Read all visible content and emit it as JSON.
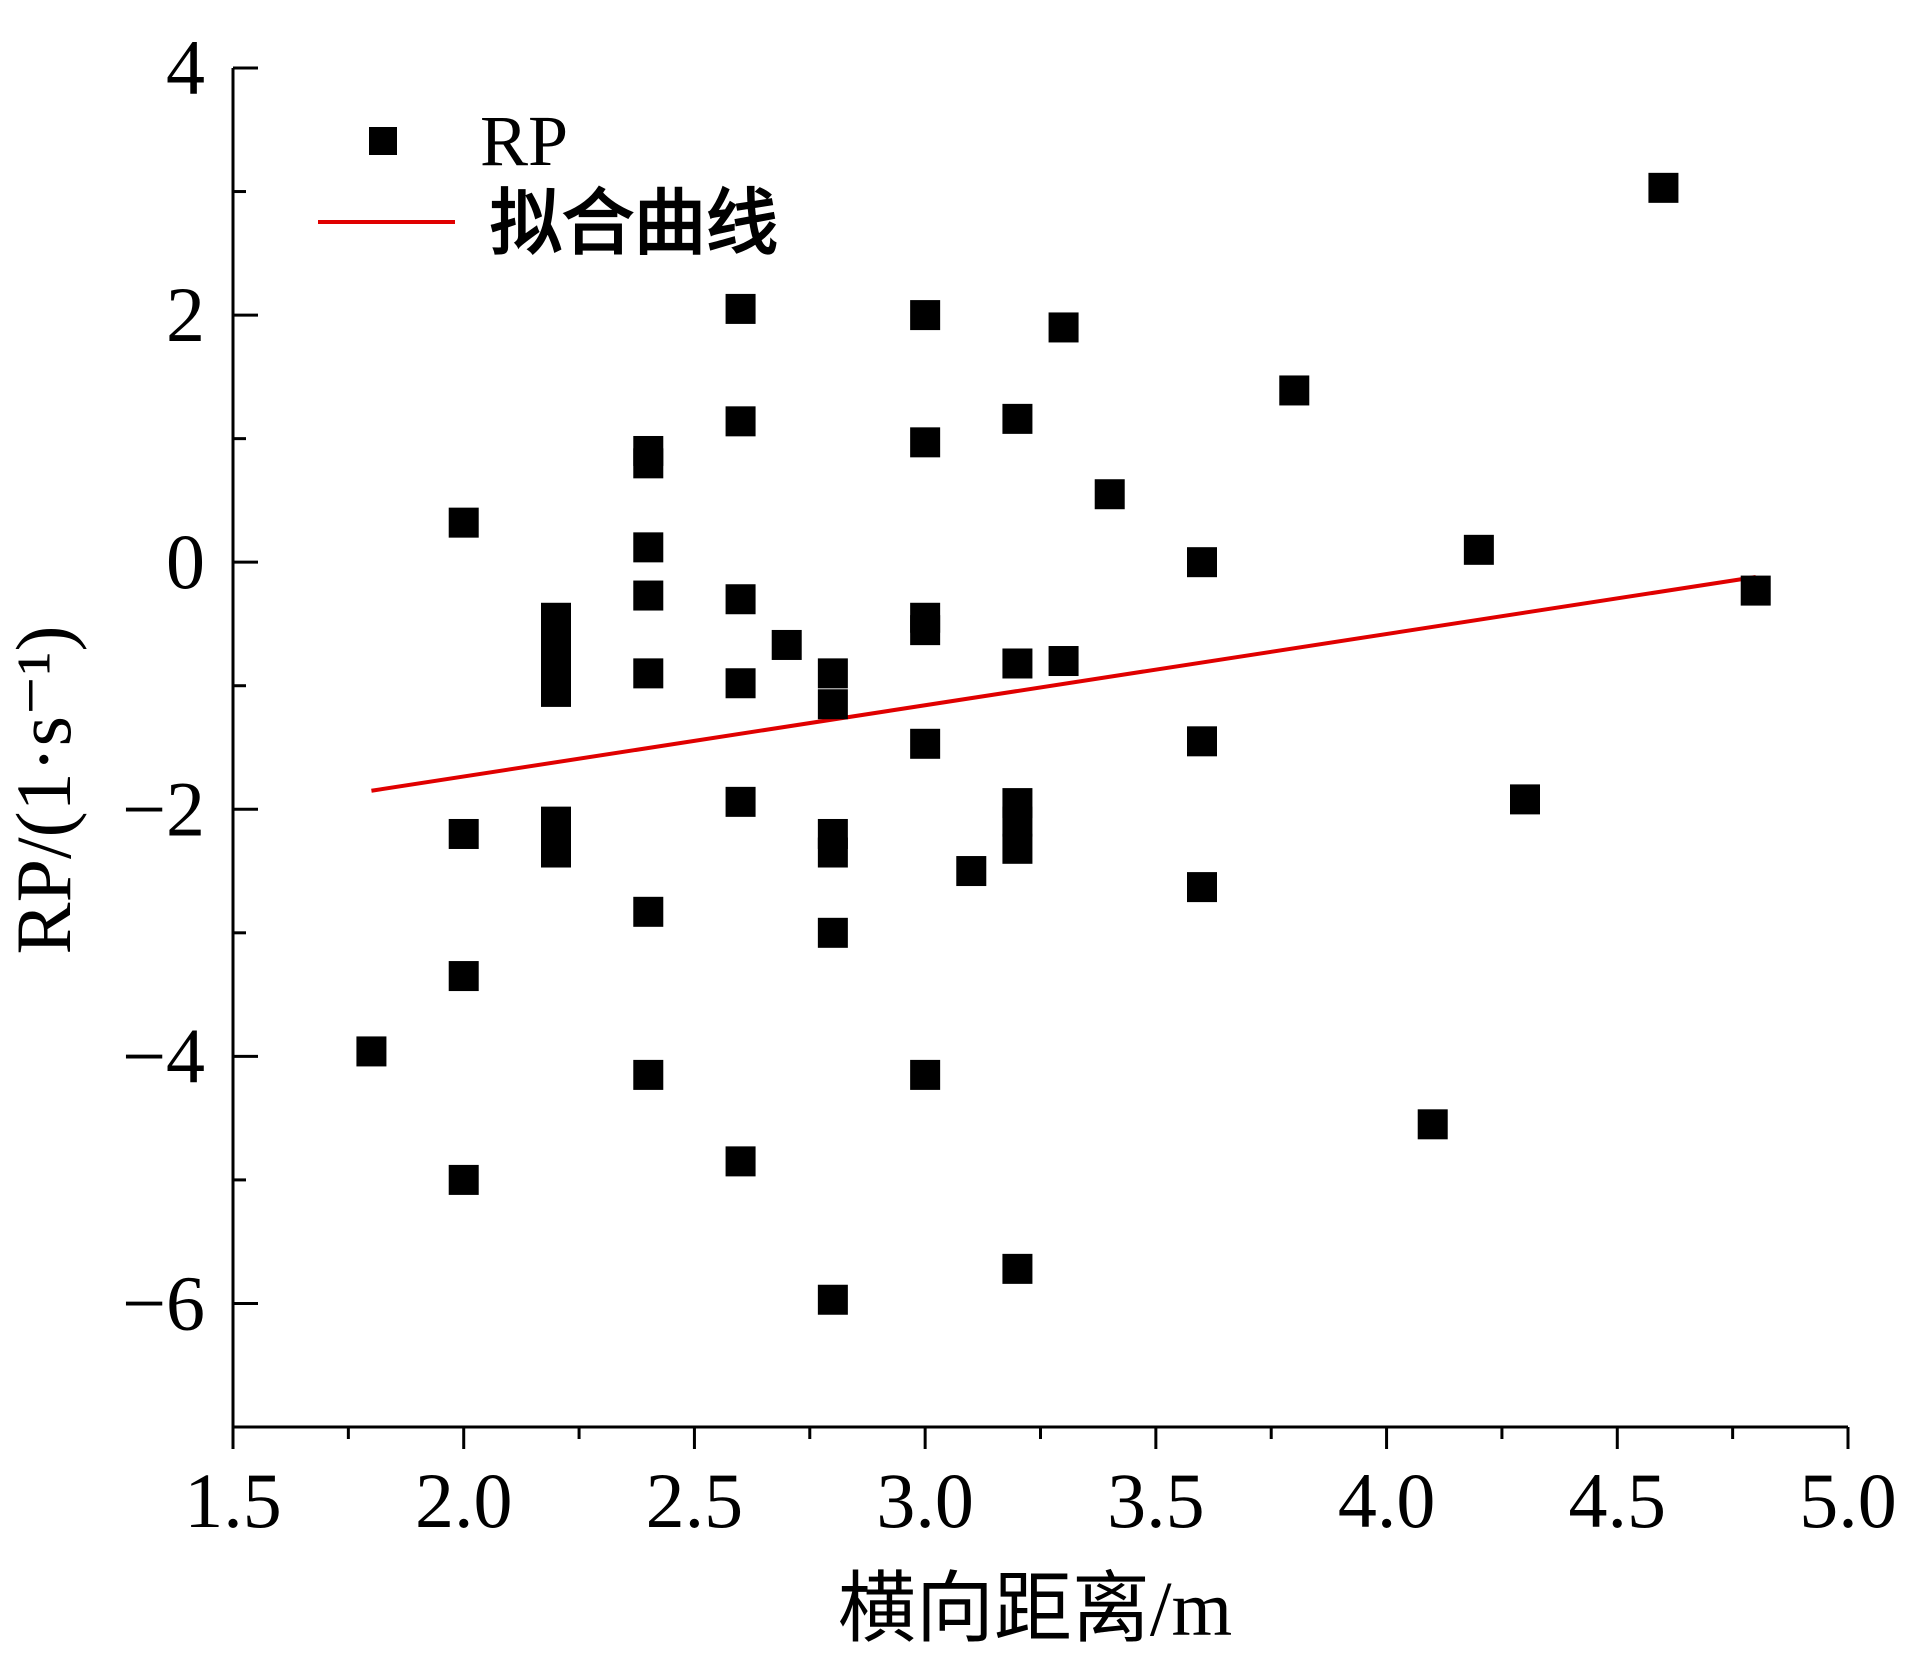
{
  "chart_data": {
    "type": "scatter",
    "xlabel": "横向距离/m",
    "ylabel": "RP/(1·s⁻¹)",
    "xlim": [
      1.5,
      5.0
    ],
    "ylim": [
      -7,
      4
    ],
    "x_ticks": [
      {
        "value": 1.5,
        "label": "1.5"
      },
      {
        "value": 2.0,
        "label": "2.0"
      },
      {
        "value": 2.5,
        "label": "2.5"
      },
      {
        "value": 3.0,
        "label": "3.0"
      },
      {
        "value": 3.5,
        "label": "3.5"
      },
      {
        "value": 4.0,
        "label": "4.0"
      },
      {
        "value": 4.5,
        "label": "4.5"
      },
      {
        "value": 5.0,
        "label": "5.0"
      }
    ],
    "x_minor_ticks": [
      1.75,
      2.25,
      2.75,
      3.25,
      3.75,
      4.25,
      4.75
    ],
    "y_ticks": [
      {
        "value": 4,
        "label": "4"
      },
      {
        "value": 2,
        "label": "2"
      },
      {
        "value": 0,
        "label": "0"
      },
      {
        "value": -2,
        "label": "−2"
      },
      {
        "value": -4,
        "label": "−4"
      },
      {
        "value": -6,
        "label": "−6"
      }
    ],
    "y_minor_ticks": [
      3,
      1,
      -1,
      -3,
      -5,
      -7
    ],
    "legend": {
      "position": "top-left",
      "entries": [
        {
          "label": "RP",
          "marker": "square"
        },
        {
          "label": "拟合曲线",
          "marker": "line"
        }
      ]
    },
    "series": [
      {
        "name": "RP",
        "kind": "scatter",
        "color": "#000000",
        "points": [
          [
            1.8,
            -3.96
          ],
          [
            2.0,
            0.32
          ],
          [
            2.0,
            -2.2
          ],
          [
            2.0,
            -3.35
          ],
          [
            2.0,
            -5.0
          ],
          [
            2.2,
            -0.45
          ],
          [
            2.2,
            -0.6
          ],
          [
            2.2,
            -0.75
          ],
          [
            2.2,
            -0.9
          ],
          [
            2.2,
            -1.05
          ],
          [
            2.2,
            -2.1
          ],
          [
            2.2,
            -2.25
          ],
          [
            2.2,
            -2.35
          ],
          [
            2.4,
            0.9
          ],
          [
            2.4,
            0.8
          ],
          [
            2.4,
            0.12
          ],
          [
            2.4,
            -0.27
          ],
          [
            2.4,
            -0.9
          ],
          [
            2.4,
            -2.83
          ],
          [
            2.4,
            -4.15
          ],
          [
            2.6,
            2.05
          ],
          [
            2.6,
            1.14
          ],
          [
            2.6,
            -0.3
          ],
          [
            2.6,
            -0.98
          ],
          [
            2.6,
            -1.94
          ],
          [
            2.6,
            -4.85
          ],
          [
            2.7,
            -0.67
          ],
          [
            2.8,
            -0.9
          ],
          [
            2.8,
            -1.15
          ],
          [
            2.8,
            -2.2
          ],
          [
            2.8,
            -2.35
          ],
          [
            2.8,
            -3.0
          ],
          [
            2.8,
            -5.97
          ],
          [
            3.0,
            2.0
          ],
          [
            3.0,
            0.97
          ],
          [
            3.0,
            -0.45
          ],
          [
            3.0,
            -0.55
          ],
          [
            3.0,
            -1.47
          ],
          [
            3.0,
            -4.15
          ],
          [
            3.1,
            -2.5
          ],
          [
            3.2,
            1.16
          ],
          [
            3.2,
            -0.82
          ],
          [
            3.2,
            -1.95
          ],
          [
            3.2,
            -2.1
          ],
          [
            3.2,
            -2.32
          ],
          [
            3.2,
            -5.72
          ],
          [
            3.3,
            1.9
          ],
          [
            3.3,
            -0.8
          ],
          [
            3.4,
            0.55
          ],
          [
            3.6,
            0.0
          ],
          [
            3.6,
            -1.45
          ],
          [
            3.6,
            -2.63
          ],
          [
            3.8,
            1.39
          ],
          [
            4.1,
            -4.55
          ],
          [
            4.2,
            0.1
          ],
          [
            4.3,
            -1.92
          ],
          [
            4.6,
            3.03
          ],
          [
            4.8,
            -0.23
          ]
        ]
      },
      {
        "name": "拟合曲线",
        "kind": "line",
        "color": "#e00000",
        "points": [
          [
            1.8,
            -1.85
          ],
          [
            4.8,
            -0.12
          ]
        ]
      }
    ]
  }
}
